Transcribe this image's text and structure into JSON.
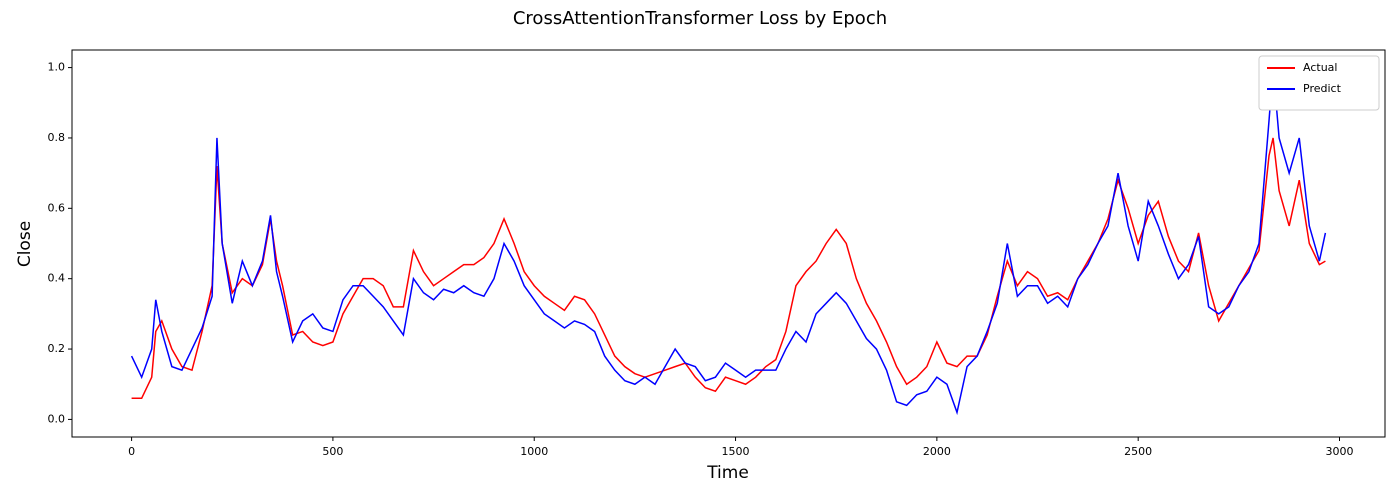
{
  "chart_data": {
    "type": "line",
    "title": "CrossAttentionTransformer Loss by Epoch",
    "x_label": "Time",
    "y_label": "Close",
    "x": [
      0,
      25,
      50,
      60,
      75,
      100,
      125,
      150,
      175,
      200,
      212,
      225,
      250,
      275,
      300,
      325,
      345,
      360,
      375,
      400,
      425,
      450,
      475,
      500,
      525,
      550,
      575,
      600,
      625,
      650,
      675,
      700,
      725,
      750,
      775,
      800,
      825,
      850,
      875,
      900,
      925,
      950,
      975,
      1000,
      1025,
      1050,
      1075,
      1100,
      1125,
      1150,
      1175,
      1200,
      1225,
      1250,
      1275,
      1300,
      1325,
      1350,
      1375,
      1400,
      1425,
      1450,
      1475,
      1500,
      1525,
      1550,
      1575,
      1600,
      1625,
      1650,
      1675,
      1700,
      1725,
      1750,
      1775,
      1800,
      1825,
      1850,
      1875,
      1900,
      1925,
      1950,
      1975,
      2000,
      2025,
      2050,
      2075,
      2100,
      2125,
      2150,
      2175,
      2200,
      2225,
      2250,
      2275,
      2300,
      2325,
      2350,
      2375,
      2400,
      2425,
      2450,
      2475,
      2500,
      2525,
      2550,
      2575,
      2600,
      2625,
      2650,
      2675,
      2700,
      2725,
      2750,
      2775,
      2800,
      2825,
      2835,
      2850,
      2875,
      2900,
      2925,
      2950,
      2965
    ],
    "series": [
      {
        "name": "Actual",
        "color": "#ff0000",
        "values": [
          0.06,
          0.06,
          0.12,
          0.25,
          0.28,
          0.2,
          0.15,
          0.14,
          0.25,
          0.38,
          0.72,
          0.5,
          0.36,
          0.4,
          0.38,
          0.44,
          0.57,
          0.45,
          0.38,
          0.24,
          0.25,
          0.22,
          0.21,
          0.22,
          0.3,
          0.35,
          0.4,
          0.4,
          0.38,
          0.32,
          0.32,
          0.48,
          0.42,
          0.38,
          0.4,
          0.42,
          0.44,
          0.44,
          0.46,
          0.5,
          0.57,
          0.5,
          0.42,
          0.38,
          0.35,
          0.33,
          0.31,
          0.35,
          0.34,
          0.3,
          0.24,
          0.18,
          0.15,
          0.13,
          0.12,
          0.13,
          0.14,
          0.15,
          0.16,
          0.12,
          0.09,
          0.08,
          0.12,
          0.11,
          0.1,
          0.12,
          0.15,
          0.17,
          0.25,
          0.38,
          0.42,
          0.45,
          0.5,
          0.54,
          0.5,
          0.4,
          0.33,
          0.28,
          0.22,
          0.15,
          0.1,
          0.12,
          0.15,
          0.22,
          0.16,
          0.15,
          0.18,
          0.18,
          0.24,
          0.35,
          0.45,
          0.38,
          0.42,
          0.4,
          0.35,
          0.36,
          0.34,
          0.4,
          0.45,
          0.5,
          0.57,
          0.68,
          0.6,
          0.5,
          0.58,
          0.62,
          0.52,
          0.45,
          0.42,
          0.53,
          0.38,
          0.28,
          0.33,
          0.38,
          0.43,
          0.48,
          0.75,
          0.8,
          0.65,
          0.55,
          0.68,
          0.5,
          0.44,
          0.45
        ]
      },
      {
        "name": "Predict",
        "color": "#0000ff",
        "values": [
          0.18,
          0.12,
          0.2,
          0.34,
          0.25,
          0.15,
          0.14,
          0.2,
          0.26,
          0.35,
          0.8,
          0.5,
          0.33,
          0.45,
          0.38,
          0.45,
          0.58,
          0.42,
          0.35,
          0.22,
          0.28,
          0.3,
          0.26,
          0.25,
          0.34,
          0.38,
          0.38,
          0.35,
          0.32,
          0.28,
          0.24,
          0.4,
          0.36,
          0.34,
          0.37,
          0.36,
          0.38,
          0.36,
          0.35,
          0.4,
          0.5,
          0.45,
          0.38,
          0.34,
          0.3,
          0.28,
          0.26,
          0.28,
          0.27,
          0.25,
          0.18,
          0.14,
          0.11,
          0.1,
          0.12,
          0.1,
          0.15,
          0.2,
          0.16,
          0.15,
          0.11,
          0.12,
          0.16,
          0.14,
          0.12,
          0.14,
          0.14,
          0.14,
          0.2,
          0.25,
          0.22,
          0.3,
          0.33,
          0.36,
          0.33,
          0.28,
          0.23,
          0.2,
          0.14,
          0.05,
          0.04,
          0.07,
          0.08,
          0.12,
          0.1,
          0.02,
          0.15,
          0.18,
          0.25,
          0.33,
          0.5,
          0.35,
          0.38,
          0.38,
          0.33,
          0.35,
          0.32,
          0.4,
          0.44,
          0.5,
          0.55,
          0.7,
          0.55,
          0.45,
          0.62,
          0.55,
          0.47,
          0.4,
          0.44,
          0.52,
          0.32,
          0.3,
          0.32,
          0.38,
          0.42,
          0.5,
          0.85,
          1.0,
          0.8,
          0.7,
          0.8,
          0.55,
          0.45,
          0.53
        ]
      }
    ],
    "xlim": [
      -148,
      3113
    ],
    "ylim": [
      -0.05,
      1.05
    ],
    "xticks": [
      0,
      500,
      1000,
      1500,
      2000,
      2500,
      3000
    ],
    "yticks": [
      {
        "value": 0,
        "label": "0.0"
      },
      {
        "value": 0.2,
        "label": "0.2"
      },
      {
        "value": 0.4,
        "label": "0.4"
      },
      {
        "value": 0.6,
        "label": "0.6"
      },
      {
        "value": 0.8,
        "label": "0.8"
      },
      {
        "value": 1,
        "label": "1.0"
      }
    ],
    "legend": "upper right"
  }
}
